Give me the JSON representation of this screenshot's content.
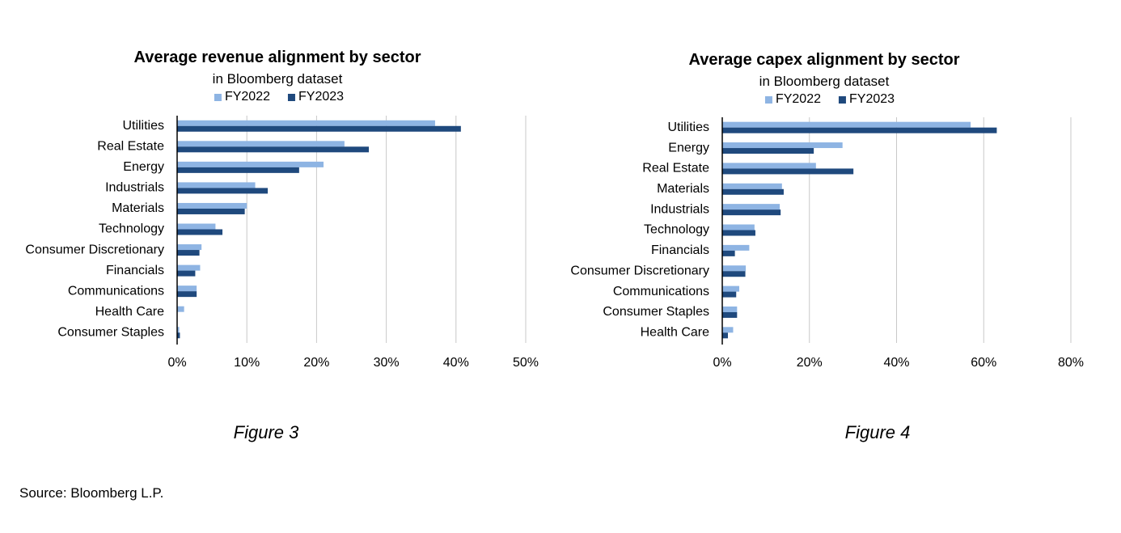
{
  "colors": {
    "fy2022": "#8EB4E3",
    "fy2023": "#1F497D",
    "grid": "#C8C8C8",
    "axis": "#000000"
  },
  "source": "Source: Bloomberg L.P.",
  "chart_data": [
    {
      "type": "bar",
      "orientation": "horizontal",
      "title": "Average revenue alignment by sector",
      "subtitle": "in Bloomberg dataset",
      "caption": "Figure 3",
      "legend": [
        "FY2022",
        "FY2023"
      ],
      "legend_position": "top",
      "categories": [
        "Utilities",
        "Real Estate",
        "Energy",
        "Industrials",
        "Materials",
        "Technology",
        "Consumer Discretionary",
        "Financials",
        "Communications",
        "Health Care",
        "Consumer Staples"
      ],
      "series": [
        {
          "name": "FY2022",
          "values": [
            37.0,
            24.0,
            21.0,
            11.2,
            10.0,
            5.5,
            3.5,
            3.3,
            2.8,
            1.0,
            0.3
          ]
        },
        {
          "name": "FY2023",
          "values": [
            40.7,
            27.5,
            17.5,
            13.0,
            9.7,
            6.5,
            3.2,
            2.6,
            2.8,
            0.0,
            0.4
          ]
        }
      ],
      "xlim": [
        0,
        50
      ],
      "xticks": [
        0,
        10,
        20,
        30,
        40,
        50
      ],
      "xtick_labels": [
        "0%",
        "10%",
        "20%",
        "30%",
        "40%",
        "50%"
      ],
      "grid": true
    },
    {
      "type": "bar",
      "orientation": "horizontal",
      "title": "Average capex alignment by sector",
      "subtitle": "in Bloomberg dataset",
      "caption": "Figure 4",
      "legend": [
        "FY2022",
        "FY2023"
      ],
      "legend_position": "top",
      "categories": [
        "Utilities",
        "Energy",
        "Real Estate",
        "Materials",
        "Industrials",
        "Technology",
        "Financials",
        "Consumer Discretionary",
        "Communications",
        "Consumer Staples",
        "Health Care"
      ],
      "series": [
        {
          "name": "FY2022",
          "values": [
            57.0,
            27.6,
            21.5,
            13.7,
            13.2,
            7.4,
            6.2,
            5.4,
            3.9,
            3.4,
            2.5
          ]
        },
        {
          "name": "FY2023",
          "values": [
            63.0,
            21.0,
            30.1,
            14.1,
            13.4,
            7.6,
            2.9,
            5.3,
            3.2,
            3.4,
            1.3
          ]
        }
      ],
      "xlim": [
        0,
        80
      ],
      "xticks": [
        0,
        20,
        40,
        60,
        80
      ],
      "xtick_labels": [
        "0%",
        "20%",
        "40%",
        "60%",
        "80%"
      ],
      "grid": true
    }
  ]
}
